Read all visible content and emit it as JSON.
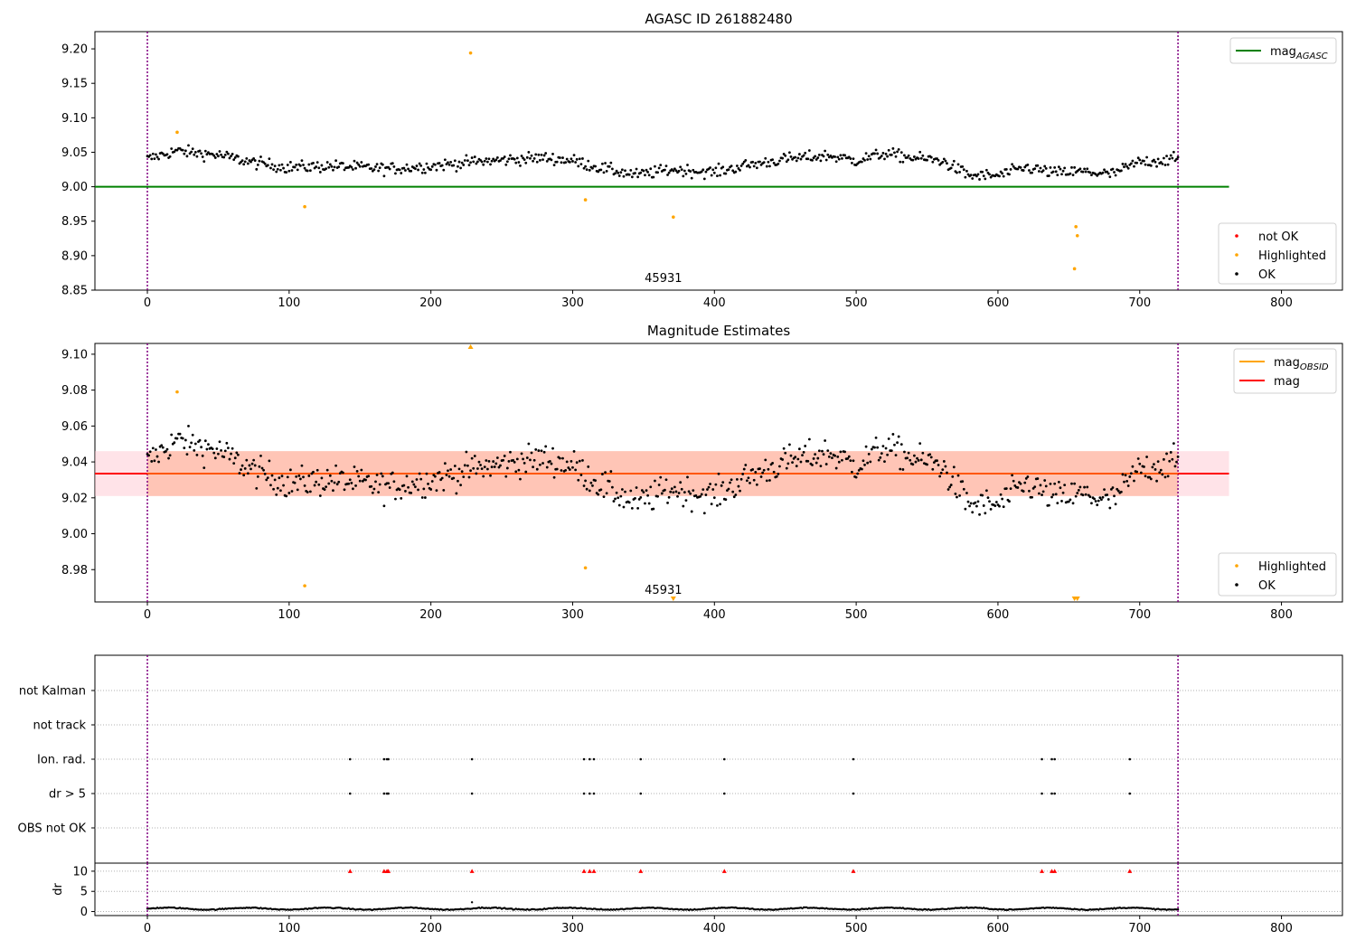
{
  "colors": {
    "ok": "#000000",
    "highlighted": "#ffa500",
    "not_ok": "#ff0000",
    "mag_agasc": "#008000",
    "mag_obsid": "#ffa500",
    "mag": "#ff0000",
    "obs_boundary": "#800080",
    "band_outer": "#ffc0cb",
    "band_inner": "#ffa07a"
  },
  "chart_data": [
    {
      "type": "scatter",
      "title": "AGASC ID 261882480",
      "xlabel": "",
      "ylabel": "",
      "xlim": [
        -37,
        843
      ],
      "ylim": [
        8.85,
        9.225
      ],
      "xticks": [
        "0",
        "100",
        "200",
        "300",
        "400",
        "500",
        "600",
        "700",
        "800"
      ],
      "yticks": [
        "8.85",
        "8.90",
        "8.95",
        "9.00",
        "9.05",
        "9.10",
        "9.15",
        "9.20"
      ],
      "grid": false,
      "obs_boundaries": [
        0,
        727
      ],
      "obsid_label": "45931",
      "obsid_label_x": 364,
      "mag_agasc": 9.0,
      "mag_agasc_x_range": [
        -37,
        763
      ],
      "ok_series": {
        "n": 728,
        "base": 9.034,
        "anchors": [
          [
            0,
            9.04
          ],
          [
            20,
            9.052
          ],
          [
            50,
            9.046
          ],
          [
            75,
            9.035
          ],
          [
            100,
            9.028
          ],
          [
            130,
            9.03
          ],
          [
            170,
            9.026
          ],
          [
            200,
            9.03
          ],
          [
            230,
            9.036
          ],
          [
            260,
            9.04
          ],
          [
            280,
            9.042
          ],
          [
            300,
            9.038
          ],
          [
            320,
            9.027
          ],
          [
            345,
            9.017
          ],
          [
            370,
            9.025
          ],
          [
            400,
            9.021
          ],
          [
            420,
            9.03
          ],
          [
            450,
            9.04
          ],
          [
            480,
            9.045
          ],
          [
            500,
            9.038
          ],
          [
            520,
            9.048
          ],
          [
            540,
            9.042
          ],
          [
            560,
            9.038
          ],
          [
            580,
            9.016
          ],
          [
            600,
            9.016
          ],
          [
            620,
            9.028
          ],
          [
            640,
            9.02
          ],
          [
            660,
            9.022
          ],
          [
            680,
            9.018
          ],
          [
            700,
            9.036
          ],
          [
            727,
            9.04
          ]
        ]
      },
      "highlighted": [
        {
          "x": 21,
          "y": 9.079
        },
        {
          "x": 111,
          "y": 8.971
        },
        {
          "x": 228,
          "y": 9.194
        },
        {
          "x": 309,
          "y": 8.981
        },
        {
          "x": 371,
          "y": 8.956
        },
        {
          "x": 654,
          "y": 8.881
        },
        {
          "x": 655,
          "y": 8.942
        },
        {
          "x": 656,
          "y": 8.929
        }
      ],
      "legend_top": [
        {
          "label": "mag",
          "sub": "AGASC",
          "kind": "line",
          "color": "#008000"
        }
      ],
      "legend_bottom": [
        {
          "label": "not OK",
          "kind": "dot",
          "color": "#ff0000"
        },
        {
          "label": "Highlighted",
          "kind": "dot",
          "color": "#ffa500"
        },
        {
          "label": "OK",
          "kind": "dot",
          "color": "#000000"
        }
      ]
    },
    {
      "type": "scatter",
      "title": "Magnitude Estimates",
      "xlabel": "",
      "ylabel": "",
      "xlim": [
        -37,
        843
      ],
      "ylim": [
        8.962,
        9.106
      ],
      "xticks": [
        "0",
        "100",
        "200",
        "300",
        "400",
        "500",
        "600",
        "700",
        "800"
      ],
      "yticks": [
        "8.98",
        "9.00",
        "9.02",
        "9.04",
        "9.06",
        "9.08",
        "9.10"
      ],
      "grid": false,
      "obs_boundaries": [
        0,
        727
      ],
      "obsid_label": "45931",
      "obsid_label_x": 364,
      "mag": 9.0335,
      "mag_obsid": 9.0335,
      "band_outer": [
        9.021,
        9.046
      ],
      "band_inner": [
        9.021,
        9.046
      ],
      "band_x_range": [
        -37,
        763
      ],
      "highlighted": [
        {
          "x": 21,
          "y": 9.079
        },
        {
          "x": 111,
          "y": 8.971
        },
        {
          "x": 309,
          "y": 8.981
        }
      ],
      "clipped_high": [
        {
          "x": 228
        }
      ],
      "clipped_low": [
        {
          "x": 371
        },
        {
          "x": 654
        },
        {
          "x": 656
        }
      ],
      "legend_top": [
        {
          "label": "mag",
          "sub": "OBSID",
          "kind": "line",
          "color": "#ffa500"
        },
        {
          "label": "mag",
          "sub": "",
          "kind": "line",
          "color": "#ff0000"
        }
      ],
      "legend_bottom": [
        {
          "label": "Highlighted",
          "kind": "dot",
          "color": "#ffa500"
        },
        {
          "label": "OK",
          "kind": "dot",
          "color": "#000000"
        }
      ]
    },
    {
      "type": "scatter",
      "title": "",
      "xlabel": "",
      "ylabel": "",
      "xlim": [
        -37,
        843
      ],
      "categories": [
        "OBS not OK",
        "dr > 5",
        "Ion. rad.",
        "not track",
        "not Kalman"
      ],
      "flags": {
        "dr > 5": [
          143,
          167,
          169,
          170,
          229,
          308,
          312,
          315,
          348,
          407,
          498,
          631,
          638,
          640,
          693
        ],
        "Ion. rad.": [
          143,
          167,
          169,
          170,
          229,
          308,
          312,
          315,
          348,
          407,
          498,
          631,
          638,
          640,
          693
        ]
      },
      "grid": true,
      "obs_boundaries": [
        0,
        727
      ]
    },
    {
      "type": "scatter",
      "title": "",
      "xlabel": "",
      "ylabel": "dr",
      "xlim": [
        -37,
        843
      ],
      "ylim": [
        -1,
        12
      ],
      "xticks": [
        "0",
        "100",
        "200",
        "300",
        "400",
        "500",
        "600",
        "700",
        "800"
      ],
      "yticks": [
        "0",
        "5",
        "10"
      ],
      "grid": true,
      "obs_boundaries": [
        0,
        727
      ],
      "dr_series": {
        "n": 728,
        "base": 0.7,
        "amp": 0.4
      },
      "dr_outliers": [
        {
          "x": 229,
          "y": 2.3
        }
      ],
      "clipped_high": [
        143,
        167,
        169,
        170,
        229,
        308,
        312,
        315,
        348,
        407,
        498,
        631,
        638,
        640,
        693
      ]
    }
  ]
}
